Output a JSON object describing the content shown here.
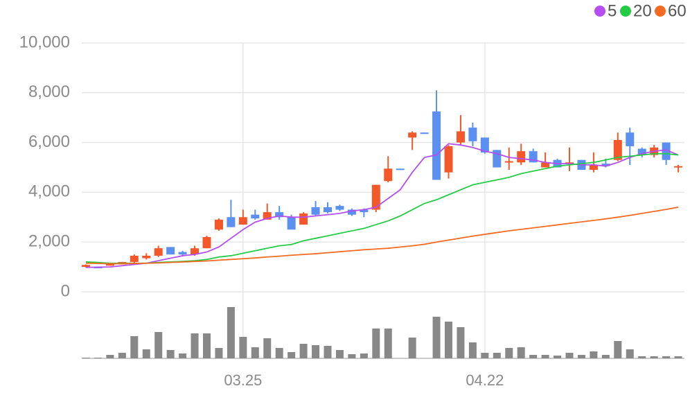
{
  "chart_data": {
    "type": "candlestick",
    "categories": [
      null,
      null,
      null,
      null,
      null,
      null,
      null,
      null,
      null,
      null,
      null,
      null,
      null,
      "03.25",
      null,
      null,
      null,
      null,
      null,
      null,
      null,
      null,
      null,
      null,
      null,
      null,
      null,
      null,
      null,
      null,
      null,
      null,
      null,
      "04.22",
      null,
      null,
      null,
      null,
      null,
      null,
      null,
      null,
      null,
      null,
      null,
      null,
      null,
      null,
      null,
      null
    ],
    "open": [
      1000,
      1000,
      1050,
      1100,
      1200,
      1350,
      1450,
      1800,
      1600,
      1500,
      1750,
      2500,
      3000,
      2700,
      3100,
      2900,
      3200,
      3000,
      2700,
      3400,
      3400,
      3450,
      3300,
      3300,
      3300,
      4450,
      4950,
      6200,
      6400,
      7250,
      4800,
      6000,
      6600,
      6200,
      5700,
      5200,
      5200,
      5650,
      5000,
      5300,
      5150,
      5300,
      4900,
      5150,
      5300,
      6400,
      5750,
      5500,
      6000,
      5000
    ],
    "high": [
      1100,
      1000,
      1150,
      1200,
      1500,
      1550,
      1850,
      1800,
      1650,
      1850,
      2250,
      2950,
      3700,
      3300,
      3300,
      3550,
      3450,
      3100,
      3200,
      3650,
      3600,
      3500,
      3350,
      3350,
      4300,
      5450,
      4950,
      6450,
      6400,
      8100,
      5900,
      7100,
      6800,
      6200,
      5700,
      5800,
      5950,
      5750,
      5600,
      5350,
      5800,
      5300,
      5600,
      5350,
      6400,
      6600,
      5800,
      5900,
      6000,
      5100
    ],
    "low": [
      980,
      990,
      1050,
      1100,
      1150,
      1300,
      1400,
      1500,
      1450,
      1450,
      1750,
      2450,
      2600,
      2700,
      2900,
      2900,
      2900,
      2500,
      2700,
      3050,
      3150,
      3250,
      3050,
      3000,
      3200,
      4400,
      4930,
      5700,
      6380,
      4500,
      4550,
      5900,
      5850,
      5550,
      5000,
      4900,
      5100,
      5200,
      5000,
      5000,
      4850,
      4900,
      4800,
      5000,
      5250,
      5100,
      5400,
      5400,
      5100,
      4800
    ],
    "close": [
      1080,
      990,
      1150,
      1200,
      1450,
      1450,
      1750,
      1500,
      1500,
      1750,
      2200,
      2900,
      2600,
      3000,
      2950,
      3200,
      3000,
      2500,
      3150,
      3100,
      3200,
      3300,
      3100,
      3200,
      4300,
      4950,
      4930,
      6400,
      6380,
      4500,
      5850,
      6450,
      6050,
      5600,
      5000,
      5250,
      5650,
      5200,
      5200,
      5000,
      5200,
      4900,
      5100,
      5050,
      6100,
      5850,
      5500,
      5800,
      5300,
      5050
    ],
    "up_color": "#f4582a",
    "down_color": "#5b8ff0",
    "series": [
      {
        "name": "5",
        "color": "#b44ef0",
        "values": [
          980,
          990,
          1000,
          1050,
          1100,
          1150,
          1250,
          1350,
          1450,
          1500,
          1600,
          1800,
          2150,
          2500,
          2800,
          2950,
          3050,
          3000,
          3000,
          3050,
          3100,
          3150,
          3250,
          3300,
          3400,
          3750,
          4100,
          4800,
          5400,
          5500,
          5950,
          5900,
          5800,
          5650,
          5550,
          5400,
          5350,
          5300,
          5200,
          5150,
          5150,
          5100,
          5100,
          5050,
          5200,
          5400,
          5550,
          5650,
          5700,
          5500
        ]
      },
      {
        "name": "20",
        "color": "#22cc44",
        "values": [
          1200,
          1180,
          1150,
          1150,
          1150,
          1150,
          1180,
          1200,
          1220,
          1250,
          1300,
          1400,
          1450,
          1550,
          1650,
          1750,
          1850,
          1900,
          2050,
          2150,
          2250,
          2350,
          2450,
          2550,
          2700,
          2850,
          3050,
          3300,
          3550,
          3700,
          3900,
          4100,
          4300,
          4400,
          4500,
          4600,
          4750,
          4850,
          4950,
          5050,
          5100,
          5150,
          5200,
          5300,
          5400,
          5450,
          5500,
          5550,
          5550,
          5500
        ]
      },
      {
        "name": "60",
        "color": "#f46a22",
        "values": [
          1150,
          1140,
          1130,
          1130,
          1140,
          1150,
          1160,
          1180,
          1200,
          1220,
          1240,
          1270,
          1300,
          1330,
          1360,
          1400,
          1430,
          1470,
          1500,
          1530,
          1570,
          1610,
          1650,
          1690,
          1720,
          1750,
          1800,
          1850,
          1910,
          2000,
          2080,
          2160,
          2240,
          2310,
          2380,
          2450,
          2510,
          2570,
          2630,
          2690,
          2750,
          2810,
          2870,
          2930,
          3000,
          3070,
          3150,
          3230,
          3310,
          3400
        ]
      }
    ],
    "volume": [
      1,
      1,
      5,
      8,
      32,
      13,
      38,
      12,
      7,
      36,
      36,
      15,
      74,
      31,
      16,
      29,
      15,
      9,
      21,
      19,
      18,
      12,
      6,
      7,
      43,
      43,
      0,
      30,
      0,
      60,
      53,
      45,
      23,
      8,
      8,
      15,
      16,
      5,
      5,
      4,
      8,
      5,
      10,
      5,
      25,
      13,
      3,
      3,
      3,
      3
    ],
    "volume_color": "#888888",
    "volume_lim": [
      0,
      80
    ],
    "ylim": [
      0,
      10000
    ],
    "yticks": [
      0,
      {
        "value": 2000,
        "label": "2,000"
      },
      {
        "value": 4000,
        "label": "4,000"
      },
      {
        "value": 6000,
        "label": "6,000"
      },
      {
        "value": 8000,
        "label": "8,000"
      },
      {
        "value": 10000,
        "label": "10,000"
      }
    ],
    "grid": true,
    "legend": "top-right"
  }
}
